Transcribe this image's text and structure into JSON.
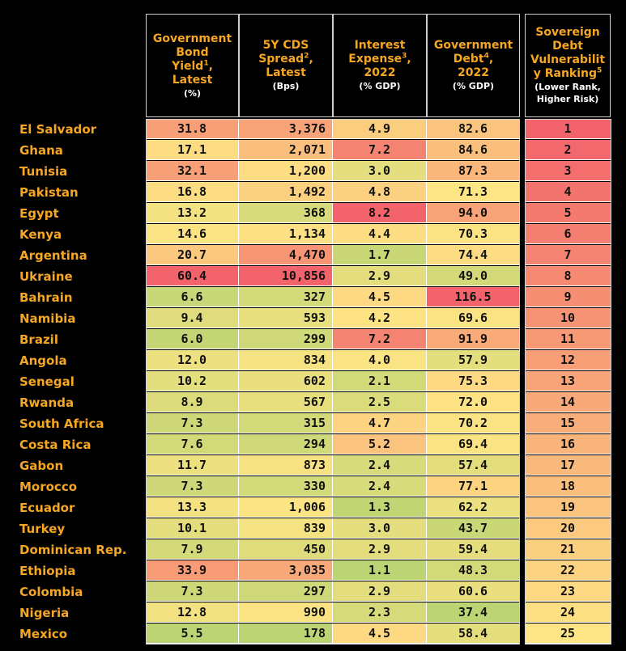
{
  "chart_data": {
    "type": "table",
    "columns": [
      {
        "key": "yield",
        "lines": [
          "Government",
          "Bond"
        ],
        "sup_line": "Yield",
        "sup": "1",
        "tail": ",",
        "extra_lines": [
          "Latest"
        ],
        "unit": "(%)"
      },
      {
        "key": "cds",
        "lines": [
          "5Y CDS"
        ],
        "sup_line": "Spread",
        "sup": "2",
        "tail": ",",
        "extra_lines": [
          "Latest"
        ],
        "unit": "(Bps)"
      },
      {
        "key": "interest",
        "lines": [
          "Interest"
        ],
        "sup_line": "Expense",
        "sup": "3",
        "tail": ",",
        "extra_lines": [
          "2022"
        ],
        "unit": "(% GDP)"
      },
      {
        "key": "debt",
        "lines": [
          "Government"
        ],
        "sup_line": "Debt",
        "sup": "4",
        "tail": ",",
        "extra_lines": [
          "2022"
        ],
        "unit": "(% GDP)"
      },
      {
        "key": "rank",
        "lines": [
          "Sovereign",
          "Debt",
          "Vulnerabilit"
        ],
        "sup_line": "y Ranking",
        "sup": "5",
        "tail": "",
        "extra_lines": [],
        "unit": "(Lower Rank, Higher Risk)"
      }
    ],
    "rows": [
      {
        "country": "El Salvador",
        "yield": "31.8",
        "cds": "3,376",
        "interest": "4.9",
        "debt": "82.6",
        "rank": "1"
      },
      {
        "country": "Ghana",
        "yield": "17.1",
        "cds": "2,071",
        "interest": "7.2",
        "debt": "84.6",
        "rank": "2"
      },
      {
        "country": "Tunisia",
        "yield": "32.1",
        "cds": "1,200",
        "interest": "3.0",
        "debt": "87.3",
        "rank": "3"
      },
      {
        "country": "Pakistan",
        "yield": "16.8",
        "cds": "1,492",
        "interest": "4.8",
        "debt": "71.3",
        "rank": "4"
      },
      {
        "country": "Egypt",
        "yield": "13.2",
        "cds": "368",
        "interest": "8.2",
        "debt": "94.0",
        "rank": "5"
      },
      {
        "country": "Kenya",
        "yield": "14.6",
        "cds": "1,134",
        "interest": "4.4",
        "debt": "70.3",
        "rank": "6"
      },
      {
        "country": "Argentina",
        "yield": "20.7",
        "cds": "4,470",
        "interest": "1.7",
        "debt": "74.4",
        "rank": "7"
      },
      {
        "country": "Ukraine",
        "yield": "60.4",
        "cds": "10,856",
        "interest": "2.9",
        "debt": "49.0",
        "rank": "8"
      },
      {
        "country": "Bahrain",
        "yield": "6.6",
        "cds": "327",
        "interest": "4.5",
        "debt": "116.5",
        "rank": "9"
      },
      {
        "country": "Namibia",
        "yield": "9.4",
        "cds": "593",
        "interest": "4.2",
        "debt": "69.6",
        "rank": "10"
      },
      {
        "country": "Brazil",
        "yield": "6.0",
        "cds": "299",
        "interest": "7.2",
        "debt": "91.9",
        "rank": "11"
      },
      {
        "country": "Angola",
        "yield": "12.0",
        "cds": "834",
        "interest": "4.0",
        "debt": "57.9",
        "rank": "12"
      },
      {
        "country": "Senegal",
        "yield": "10.2",
        "cds": "602",
        "interest": "2.1",
        "debt": "75.3",
        "rank": "13"
      },
      {
        "country": "Rwanda",
        "yield": "8.9",
        "cds": "567",
        "interest": "2.5",
        "debt": "72.0",
        "rank": "14"
      },
      {
        "country": "South Africa",
        "yield": "7.3",
        "cds": "315",
        "interest": "4.7",
        "debt": "70.2",
        "rank": "15"
      },
      {
        "country": "Costa Rica",
        "yield": "7.6",
        "cds": "294",
        "interest": "5.2",
        "debt": "69.4",
        "rank": "16"
      },
      {
        "country": "Gabon",
        "yield": "11.7",
        "cds": "873",
        "interest": "2.4",
        "debt": "57.4",
        "rank": "17"
      },
      {
        "country": "Morocco",
        "yield": "7.3",
        "cds": "330",
        "interest": "2.4",
        "debt": "77.1",
        "rank": "18"
      },
      {
        "country": "Ecuador",
        "yield": "13.3",
        "cds": "1,006",
        "interest": "1.3",
        "debt": "62.2",
        "rank": "19"
      },
      {
        "country": "Turkey",
        "yield": "10.1",
        "cds": "839",
        "interest": "3.0",
        "debt": "43.7",
        "rank": "20"
      },
      {
        "country": "Dominican Rep.",
        "yield": "7.9",
        "cds": "450",
        "interest": "2.9",
        "debt": "59.4",
        "rank": "21"
      },
      {
        "country": "Ethiopia",
        "yield": "33.9",
        "cds": "3,035",
        "interest": "1.1",
        "debt": "48.3",
        "rank": "22"
      },
      {
        "country": "Colombia",
        "yield": "7.3",
        "cds": "297",
        "interest": "2.9",
        "debt": "60.6",
        "rank": "23"
      },
      {
        "country": "Nigeria",
        "yield": "12.8",
        "cds": "990",
        "interest": "2.3",
        "debt": "37.4",
        "rank": "24"
      },
      {
        "country": "Mexico",
        "yield": "5.5",
        "cds": "178",
        "interest": "4.5",
        "debt": "58.4",
        "rank": "25"
      }
    ],
    "color_scale": {
      "low": "#a9cf6f",
      "mid": "#fde484",
      "high": "#f2636b"
    }
  }
}
